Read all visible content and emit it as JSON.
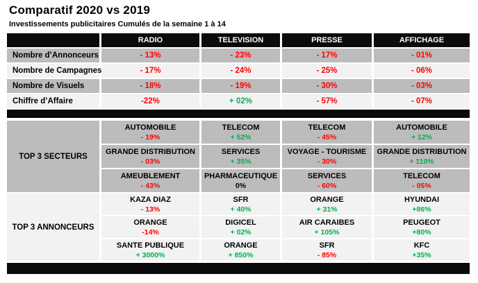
{
  "header": {
    "title": "Comparatif 2020 vs 2019",
    "subtitle": "Investissements publicitaires Cumulés de la semaine 1 à 14"
  },
  "colors": {
    "negative": "#ff0000",
    "positive": "#00b050",
    "neutral": "#000000",
    "band_black": "#0b0b0b",
    "row_gray": "#bcbcbc",
    "row_light": "#f2f2f2"
  },
  "table": {
    "columns": [
      "RADIO",
      "TELEVISION",
      "PRESSE",
      "AFFICHAGE"
    ],
    "metrics": [
      {
        "label": "Nombre d’Annonceurs",
        "values": [
          {
            "text": "- 13%",
            "trend": "negative"
          },
          {
            "text": "- 23%",
            "trend": "negative"
          },
          {
            "text": "- 17%",
            "trend": "negative"
          },
          {
            "text": "- 01%",
            "trend": "negative"
          }
        ]
      },
      {
        "label": "Nombre de Campagnes",
        "values": [
          {
            "text": "- 17%",
            "trend": "negative"
          },
          {
            "text": "- 24%",
            "trend": "negative"
          },
          {
            "text": "- 25%",
            "trend": "negative"
          },
          {
            "text": "- 06%",
            "trend": "negative"
          }
        ]
      },
      {
        "label": "Nombre de Visuels",
        "values": [
          {
            "text": "- 18%",
            "trend": "negative"
          },
          {
            "text": "- 19%",
            "trend": "negative"
          },
          {
            "text": "- 30%",
            "trend": "negative"
          },
          {
            "text": "- 03%",
            "trend": "negative"
          }
        ]
      },
      {
        "label": "Chiffre d’Affaire",
        "values": [
          {
            "text": "-22%",
            "trend": "negative"
          },
          {
            "text": "+ 02%",
            "trend": "positive"
          },
          {
            "text": "- 57%",
            "trend": "negative"
          },
          {
            "text": "- 07%",
            "trend": "negative"
          }
        ]
      }
    ],
    "secteurs": {
      "label": "TOP 3 SECTEURS",
      "rows": [
        [
          {
            "name": "AUTOMOBILE",
            "value": "- 19%",
            "trend": "negative"
          },
          {
            "name": "TELECOM",
            "value": "+ 52%",
            "trend": "positive"
          },
          {
            "name": "TELECOM",
            "value": "- 45%",
            "trend": "negative"
          },
          {
            "name": "AUTOMOBILE",
            "value": "+ 12%",
            "trend": "positive"
          }
        ],
        [
          {
            "name": "GRANDE DISTRIBUTION",
            "value": "- 03%",
            "trend": "negative"
          },
          {
            "name": "SERVICES",
            "value": "+ 35%",
            "trend": "positive"
          },
          {
            "name": "VOYAGE - TOURISME",
            "value": "- 30%",
            "trend": "negative"
          },
          {
            "name": "GRANDE DISTRIBUTION",
            "value": "+ 110%",
            "trend": "positive"
          }
        ],
        [
          {
            "name": "AMEUBLEMENT",
            "value": "- 43%",
            "trend": "negative"
          },
          {
            "name": "PHARMACEUTIQUE",
            "value": "0%",
            "trend": "neutral"
          },
          {
            "name": "SERVICES",
            "value": "- 60%",
            "trend": "negative"
          },
          {
            "name": "TELECOM",
            "value": "- 05%",
            "trend": "negative"
          }
        ]
      ]
    },
    "annonceurs": {
      "label": "TOP 3 ANNONCEURS",
      "rows": [
        [
          {
            "name": "KAZA DIAZ",
            "value": "- 13%",
            "trend": "negative"
          },
          {
            "name": "SFR",
            "value": "+ 40%",
            "trend": "positive"
          },
          {
            "name": "ORANGE",
            "value": "+ 31%",
            "trend": "positive"
          },
          {
            "name": "HYUNDAI",
            "value": "+86%",
            "trend": "positive"
          }
        ],
        [
          {
            "name": "ORANGE",
            "value": "-14%",
            "trend": "negative"
          },
          {
            "name": "DIGICEL",
            "value": "+ 02%",
            "trend": "positive"
          },
          {
            "name": "AIR CARAIBES",
            "value": "+ 105%",
            "trend": "positive"
          },
          {
            "name": "PEUGEOT",
            "value": "+80%",
            "trend": "positive"
          }
        ],
        [
          {
            "name": "SANTE PUBLIQUE",
            "value": "+ 3000%",
            "trend": "positive"
          },
          {
            "name": "ORANGE",
            "value": "+ 850%",
            "trend": "positive"
          },
          {
            "name": "SFR",
            "value": "- 85%",
            "trend": "negative"
          },
          {
            "name": "KFC",
            "value": "+35%",
            "trend": "positive"
          }
        ]
      ]
    }
  }
}
